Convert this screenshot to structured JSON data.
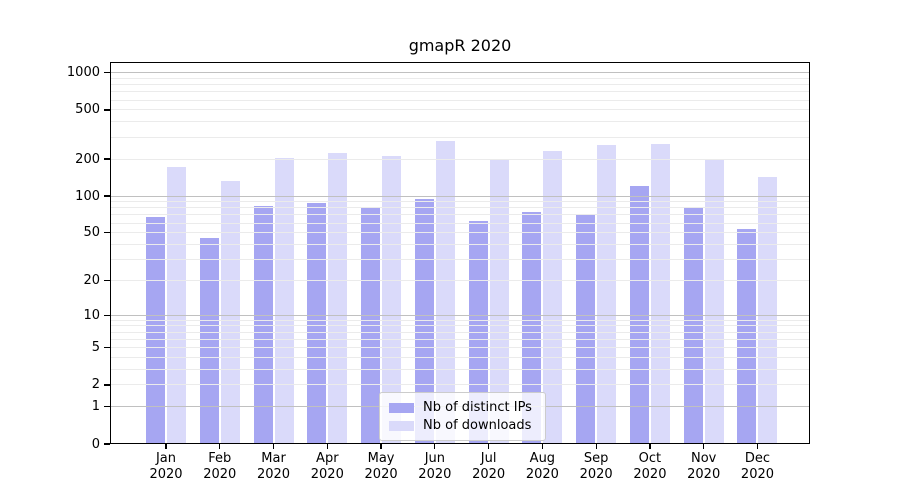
{
  "chart_data": {
    "type": "bar",
    "title": "gmapR 2020",
    "categories": [
      "Jan",
      "Feb",
      "Mar",
      "Apr",
      "May",
      "Jun",
      "Jul",
      "Aug",
      "Sep",
      "Oct",
      "Nov",
      "Dec"
    ],
    "x_year": "2020",
    "series": [
      {
        "name": "Nb of distinct IPs",
        "color": "#a6a6f2",
        "values": [
          67,
          45,
          83,
          87,
          80,
          95,
          63,
          74,
          70,
          122,
          81,
          54
        ]
      },
      {
        "name": "Nb of downloads",
        "color": "#dadafa",
        "values": [
          172,
          132,
          205,
          225,
          213,
          278,
          200,
          233,
          260,
          264,
          200,
          143
        ]
      }
    ],
    "y_scale": "log10(1+x)",
    "y_ticks": [
      0,
      1,
      2,
      5,
      10,
      20,
      50,
      100,
      200,
      500,
      1000
    ],
    "y_axis_max": 1223,
    "grid": "horizontal, minor and major, drawn over bars",
    "legend": {
      "position": "lower center",
      "labels": [
        "Nb of distinct IPs",
        "Nb of downloads"
      ]
    }
  }
}
